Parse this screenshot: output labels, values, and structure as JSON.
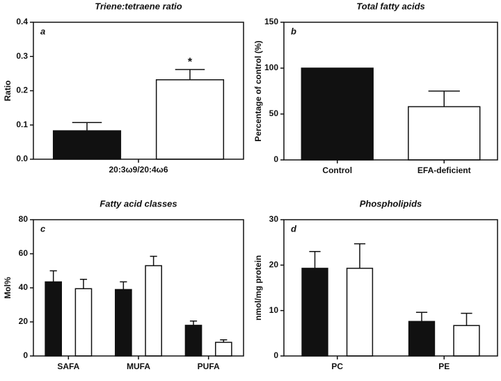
{
  "chart_data": [
    {
      "type": "bar",
      "title": "Triene:tetraene ratio",
      "panel_label": "a",
      "ylabel": "Ratio",
      "categories": [
        "20:3ω9/20:4ω6"
      ],
      "series": [
        {
          "color": "#111111",
          "values": [
            0.083
          ],
          "errors": [
            0.024
          ]
        },
        {
          "color": "#ffffff",
          "values": [
            0.232
          ],
          "errors": [
            0.03
          ]
        }
      ],
      "annotation": "*",
      "ylim": [
        0,
        0.4
      ],
      "yticks": [
        {
          "value": 0,
          "label": "0.0"
        },
        0.1,
        0.2,
        0.3,
        0.4
      ]
    },
    {
      "type": "bar",
      "title": "Total fatty acids",
      "panel_label": "b",
      "ylabel": "Percentage of control (%)",
      "categories": [
        "Control",
        "EFA-deficient"
      ],
      "series": [
        {
          "colors": [
            "#111111",
            "#ffffff"
          ],
          "values": [
            100,
            58
          ],
          "errors": [
            null,
            17
          ]
        }
      ],
      "ylim": [
        0,
        150
      ],
      "yticks": [
        0,
        50,
        100,
        150
      ]
    },
    {
      "type": "bar",
      "title": "Fatty acid classes",
      "panel_label": "c",
      "ylabel": "Mol%",
      "categories": [
        "SAFA",
        "MUFA",
        "PUFA"
      ],
      "series": [
        {
          "color": "#111111",
          "values": [
            43.5,
            39,
            18
          ],
          "errors": [
            6.5,
            4.5,
            2.5
          ]
        },
        {
          "color": "#ffffff",
          "values": [
            39.5,
            53,
            8
          ],
          "errors": [
            5.5,
            5.5,
            1.5
          ]
        }
      ],
      "ylim": [
        0,
        80
      ],
      "yticks": [
        0,
        20,
        40,
        60,
        80
      ]
    },
    {
      "type": "bar",
      "title": "Phospholipids",
      "panel_label": "d",
      "ylabel": "nmol/mg protein",
      "categories": [
        "PC",
        "PE"
      ],
      "series": [
        {
          "color": "#111111",
          "values": [
            19.3,
            7.6
          ],
          "errors": [
            3.7,
            2
          ]
        },
        {
          "color": "#ffffff",
          "values": [
            19.3,
            6.7
          ],
          "errors": [
            5.4,
            2.7
          ]
        }
      ],
      "ylim": [
        0,
        30
      ],
      "yticks": [
        0,
        10,
        20,
        30
      ]
    }
  ]
}
